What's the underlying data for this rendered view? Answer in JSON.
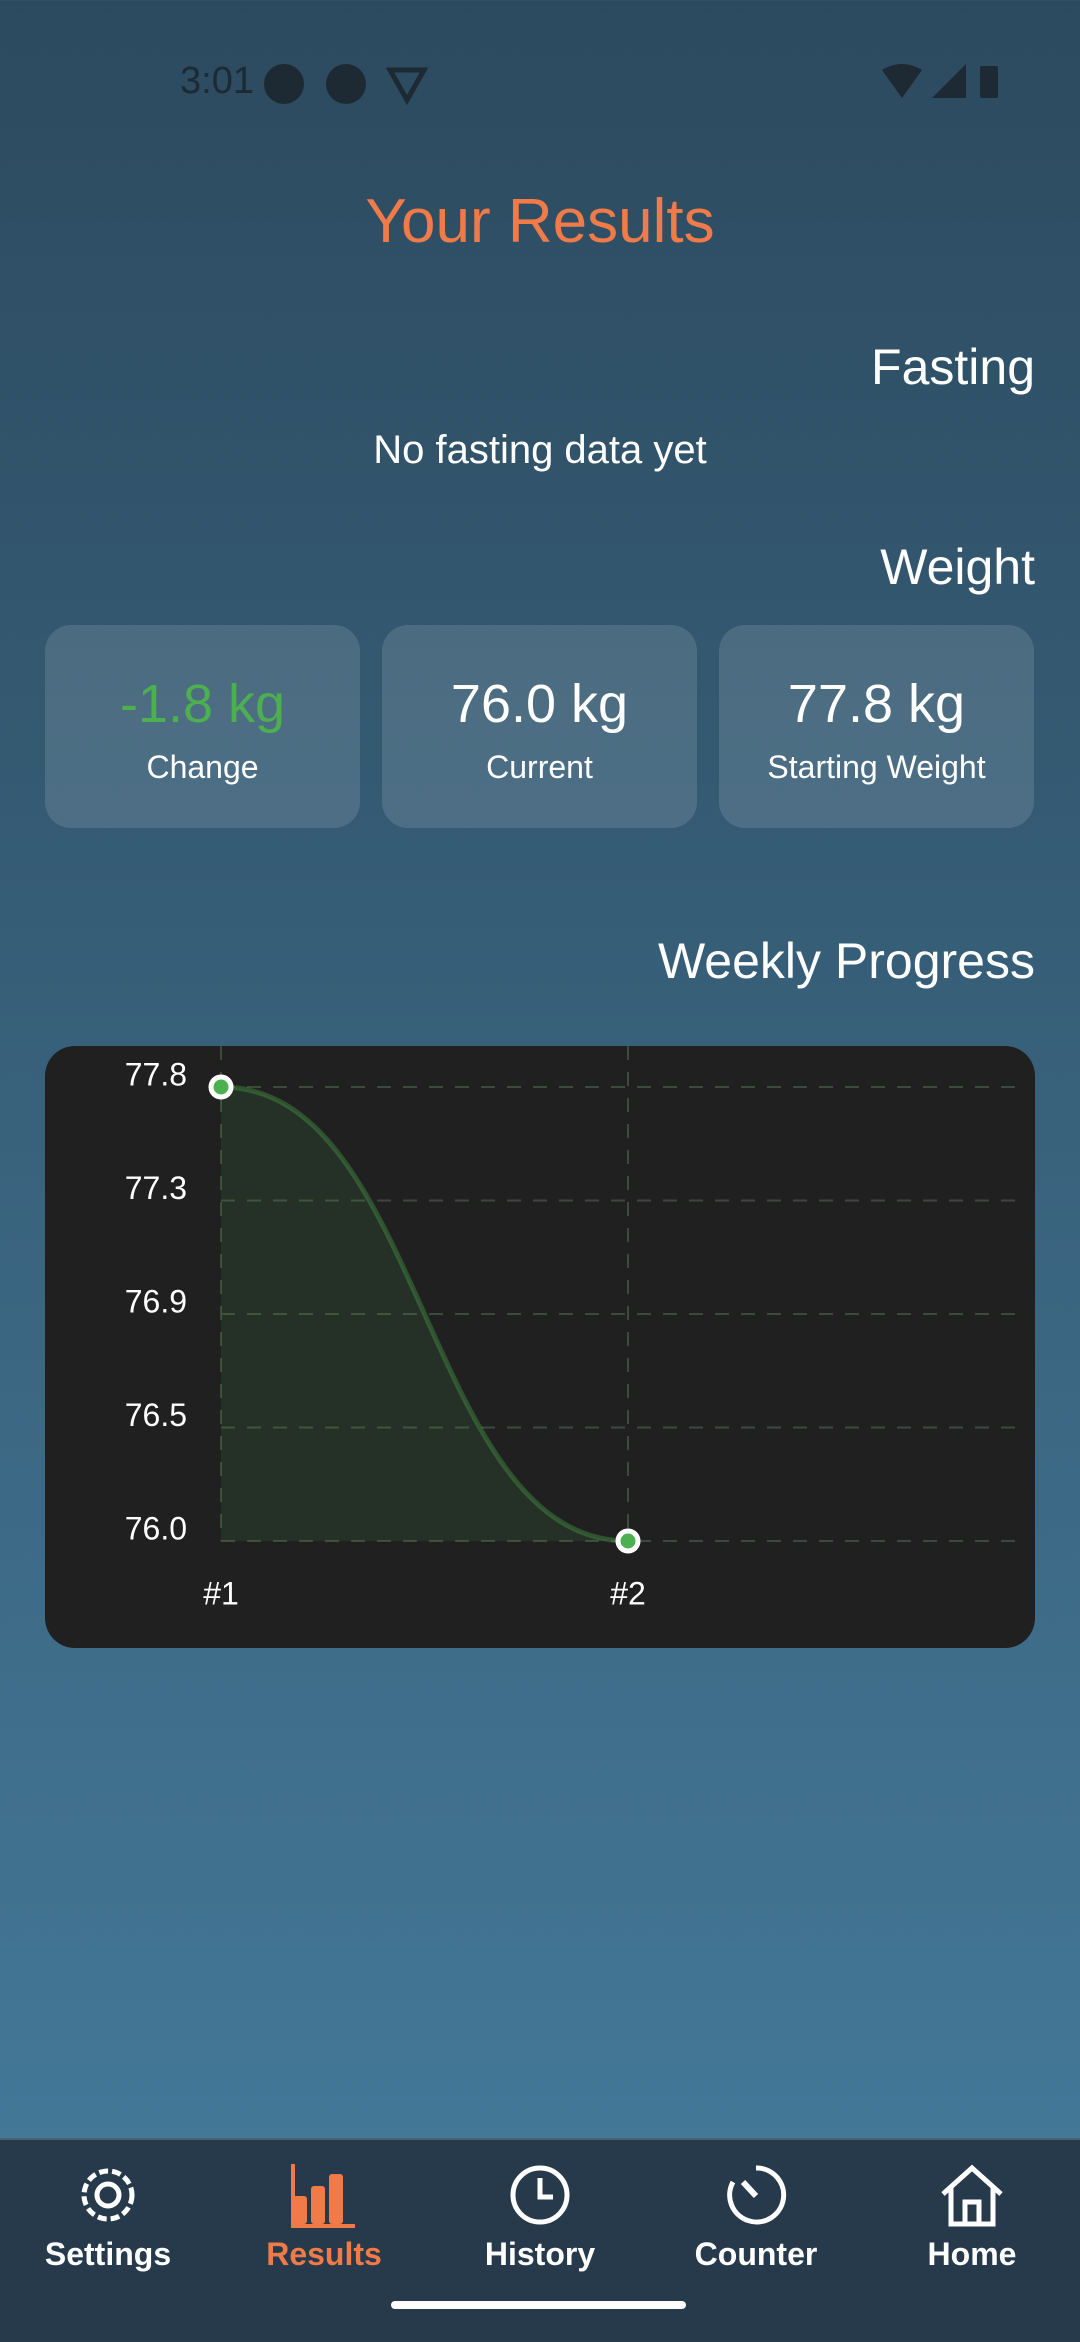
{
  "status_bar": {
    "time": "3:01"
  },
  "header": {
    "title": "Your Results"
  },
  "fasting": {
    "title": "Fasting",
    "empty_message": "No fasting data yet"
  },
  "weight": {
    "title": "Weight",
    "cards": [
      {
        "value": "-1.8 kg",
        "label": "Change"
      },
      {
        "value": "76.0 kg",
        "label": "Current"
      },
      {
        "value": "77.8 kg",
        "label": "Starting Weight"
      }
    ]
  },
  "progress": {
    "title": "Weekly Progress",
    "chart": {
      "type": "line",
      "categories": [
        "#1",
        "#2"
      ],
      "values": [
        77.8,
        76.0
      ],
      "ylim": [
        76,
        77.8
      ],
      "yticks": [
        {
          "value": 76,
          "label": "76.0"
        },
        {
          "value": 76.45,
          "label": "76.5"
        },
        76.9,
        {
          "value": 77.35,
          "label": "77.3"
        },
        77.8
      ],
      "color": "#4caf50",
      "grid": true
    }
  },
  "nav": {
    "items": [
      {
        "label": "Settings"
      },
      {
        "label": "Results",
        "active": true
      },
      {
        "label": "History"
      },
      {
        "label": "Counter"
      },
      {
        "label": "Home"
      }
    ]
  }
}
